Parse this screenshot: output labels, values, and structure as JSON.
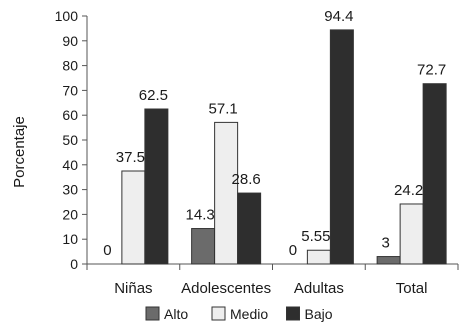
{
  "chart_data": {
    "type": "bar",
    "title": "",
    "xlabel": "",
    "ylabel": "Porcentaje",
    "ylim": [
      0,
      100
    ],
    "yticks": [
      0,
      10,
      20,
      30,
      40,
      50,
      60,
      70,
      80,
      90,
      100
    ],
    "categories": [
      "Niñas",
      "Adolescentes",
      "Adultas",
      "Total"
    ],
    "series": [
      {
        "name": "Alto",
        "color": "#6b6b6b",
        "values": [
          0,
          14.3,
          0,
          3
        ],
        "labels": [
          "0",
          "14.3",
          "0",
          "3"
        ]
      },
      {
        "name": "Medio",
        "color": "#eeeeee",
        "values": [
          37.5,
          57.1,
          5.55,
          24.2
        ],
        "labels": [
          "37.5",
          "57.1",
          "5.55",
          "24.2"
        ]
      },
      {
        "name": "Bajo",
        "color": "#2e2e2e",
        "values": [
          62.5,
          28.6,
          94.4,
          72.7
        ],
        "labels": [
          "62.5",
          "28.6",
          "94.4",
          "72.7"
        ]
      }
    ],
    "legend_position": "bottom",
    "grid": false
  }
}
